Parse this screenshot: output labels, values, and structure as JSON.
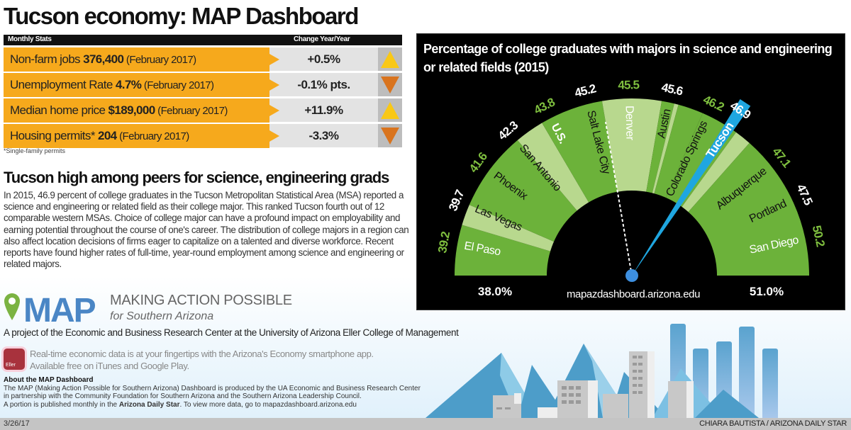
{
  "title": "Tucson economy: MAP Dashboard",
  "stats": {
    "header_left": "Monthly Stats",
    "header_right": "Change Year/Year",
    "rows": [
      {
        "label": "Non-farm jobs ",
        "value": "376,400",
        "date": " (February 2017)",
        "change": "+0.5%",
        "direction": "up"
      },
      {
        "label": "Unemployment Rate ",
        "value": "4.7%",
        "date": " (February 2017)",
        "change": "-0.1% pts.",
        "direction": "down"
      },
      {
        "label": "Median home price ",
        "value": "$189,000",
        "date": " (February 2017)",
        "change": "+11.9%",
        "direction": "up"
      },
      {
        "label": "Housing permits* ",
        "value": "204",
        "date": " (February 2017)",
        "change": "-3.3%",
        "direction": "down"
      }
    ],
    "footnote": "*Single-family permits",
    "colors": {
      "row": "#f6a91c",
      "up": "#f9c816",
      "down": "#d9741e"
    }
  },
  "article": {
    "headline": "Tucson high among peers for science, engineering grads",
    "body": "In 2015, 46.9 percent of college graduates in the Tucson Metropolitan Statistical Area (MSA) reported a science and engineering or related field as their college major. This ranked Tucson fourth out of 12 comparable western MSAs. Choice of college major can have a profound impact on employability and earning potential throughout the course of one's career. The distribution of college majors in a region can also affect location decisions of firms eager to capitalize on a talented and diverse workforce. Recent reports have found higher rates of full-time, year-round employment among science and engineering or related majors."
  },
  "chart_data": {
    "type": "radial gauge",
    "title": "Percentage of college graduates with majors in science and engineering or related fields (2015)",
    "range": [
      38.0,
      51.0
    ],
    "range_labels": [
      "38.0%",
      "51.0%"
    ],
    "url": "mapazdashboard.arizona.edu",
    "categories": [
      "El Paso",
      "Las Vegas",
      "Phoenix",
      "San Antonio",
      "U.S.",
      "Salt Lake City",
      "Denver",
      "Austin",
      "Colorado Springs",
      "Tucson",
      "Albuquerque",
      "Portland",
      "San Diego"
    ],
    "values": [
      "39.2",
      "39.7",
      "41.6",
      "42.3",
      "43.8",
      "45.2",
      "45.5",
      "45.6",
      "46.2",
      "46.9",
      "47.1",
      "47.5",
      "50.2"
    ],
    "highlight": "Tucson",
    "benchmark": "U.S.",
    "colors": {
      "dark": "#6cb23a",
      "light": "#b8d88e",
      "highlight": "#1fa6e0",
      "value_green": "#7fbf3f",
      "value_white": "#ffffff"
    }
  },
  "branding": {
    "logo": "MAP",
    "name": "MAKING ACTION POSSIBLE",
    "tagline": "for Southern Arizona",
    "project": "A project of the Economic and Business Research Center at the University of Arizona Eller College of Management",
    "app_icon_label": "Eller",
    "app_line1": "Real-time economic data is at your fingertips with the Arizona's Economy smartphone app.",
    "app_line2": "Available free on iTunes and Google Play.",
    "about_title": "About the MAP Dashboard",
    "about_1": "The MAP (Making Action Possible for Southern Arizona) Dashboard is produced by the UA Economic and Business Research Center in partnership with the Community Foundation for Southern Arizona and the Southern Arizona Leadership Council.",
    "about_2": "A portion is published monthly in the ",
    "about_bold": "Arizona Daily Star",
    "about_3": ". To view more data, go to mapazdashboard.arizona.edu"
  },
  "footer": {
    "date": "3/26/17",
    "credit": "CHIARA BAUTISTA / ARIZONA DAILY STAR"
  }
}
